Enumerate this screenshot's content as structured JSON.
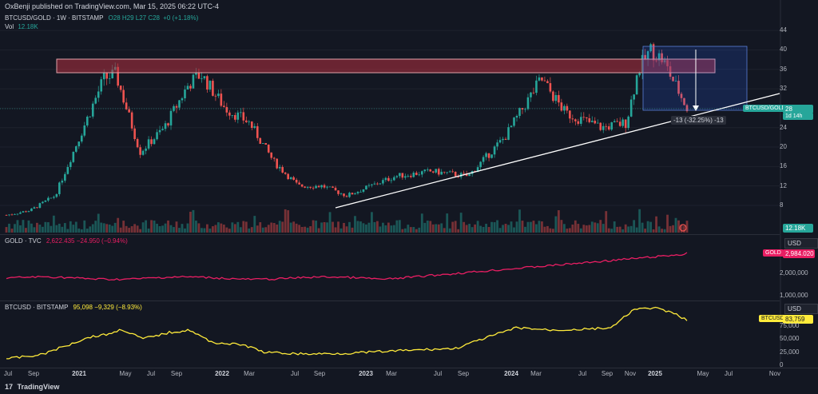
{
  "header": {
    "publisher_text": "OxBenji published on TradingView.com, Mar 15, 2025 06:22 UTC-4"
  },
  "main_pane": {
    "symbol_line": "BTCUSD/GOLD · 1W · BITSTAMP",
    "ohlc_text": "O28 H29 L27 C28",
    "change_text": "+0 (+1.18%)",
    "volume_label": "Vol",
    "volume_value": "12.18K",
    "y_ticks": [
      "44",
      "40",
      "36",
      "32",
      "28",
      "24",
      "20",
      "16",
      "12",
      "8"
    ],
    "price_badge_label": "BTCUSD/GOLD",
    "price_badge_value": "28",
    "price_badge_countdown": "1d 14h",
    "volume_badge": "12.18K",
    "measure_label": "-13 (-32.25%) -13",
    "colors": {
      "up": "#26a69a",
      "down": "#ef5350",
      "resistance_zone": "#b2303f",
      "measure_box": "#2962ff"
    }
  },
  "gold_pane": {
    "legend_name": "GOLD · TVC",
    "legend_values": "2,622.435 −24.950 (−0.94%)",
    "currency": "USD",
    "y_ticks": [
      "2,000,000",
      "1,000,000"
    ],
    "badge_label": "GOLD",
    "badge_value": "2,984.020",
    "line_color": "#e91e63"
  },
  "btc_pane": {
    "legend_name": "BTCUSD · BITSTAMP",
    "legend_values": "95,098 −9,329 (−8.93%)",
    "currency": "USD",
    "y_ticks": [
      "75,000",
      "50,000",
      "25,000",
      "0"
    ],
    "badge_label": "BTCUSD",
    "badge_value": "83,759",
    "line_color": "#ffeb3b"
  },
  "time_axis": {
    "labels": [
      {
        "text": "Jul",
        "bold": false
      },
      {
        "text": "Sep",
        "bold": false
      },
      {
        "text": "2021",
        "bold": true
      },
      {
        "text": "May",
        "bold": false
      },
      {
        "text": "Jul",
        "bold": false
      },
      {
        "text": "Sep",
        "bold": false
      },
      {
        "text": "2022",
        "bold": true
      },
      {
        "text": "Mar",
        "bold": false
      },
      {
        "text": "Jul",
        "bold": false
      },
      {
        "text": "Sep",
        "bold": false
      },
      {
        "text": "2023",
        "bold": true
      },
      {
        "text": "Mar",
        "bold": false
      },
      {
        "text": "Jul",
        "bold": false
      },
      {
        "text": "Sep",
        "bold": false
      },
      {
        "text": "2024",
        "bold": true
      },
      {
        "text": "Mar",
        "bold": false
      },
      {
        "text": "Jul",
        "bold": false
      },
      {
        "text": "Sep",
        "bold": false
      },
      {
        "text": "Nov",
        "bold": false
      },
      {
        "text": "2025",
        "bold": true
      },
      {
        "text": "May",
        "bold": false
      },
      {
        "text": "Jul",
        "bold": false
      },
      {
        "text": "Nov",
        "bold": false
      }
    ]
  },
  "footer": {
    "brand": "TradingView"
  },
  "chart_data": {
    "type": "candlestick",
    "symbol": "BTCUSD/GOLD",
    "interval": "1W",
    "ylim": [
      6,
      44
    ],
    "approx_path": [
      [
        "2020-07",
        6
      ],
      [
        "2020-09",
        7
      ],
      [
        "2020-11",
        10
      ],
      [
        "2021-01",
        22
      ],
      [
        "2021-03",
        34
      ],
      [
        "2021-04",
        35
      ],
      [
        "2021-06",
        19
      ],
      [
        "2021-08",
        24
      ],
      [
        "2021-10",
        33
      ],
      [
        "2021-11",
        35
      ],
      [
        "2022-01",
        28
      ],
      [
        "2022-03",
        25
      ],
      [
        "2022-05",
        17
      ],
      [
        "2022-07",
        12
      ],
      [
        "2022-09",
        12
      ],
      [
        "2022-11",
        10
      ],
      [
        "2023-01",
        12
      ],
      [
        "2023-03",
        14
      ],
      [
        "2023-06",
        15
      ],
      [
        "2023-09",
        14
      ],
      [
        "2023-12",
        22
      ],
      [
        "2024-03",
        34
      ],
      [
        "2024-05",
        27
      ],
      [
        "2024-08",
        24
      ],
      [
        "2024-10",
        25
      ],
      [
        "2024-11",
        36
      ],
      [
        "2024-12",
        40
      ],
      [
        "2025-01",
        38
      ],
      [
        "2025-02",
        33
      ],
      [
        "2025-03",
        28
      ]
    ]
  }
}
